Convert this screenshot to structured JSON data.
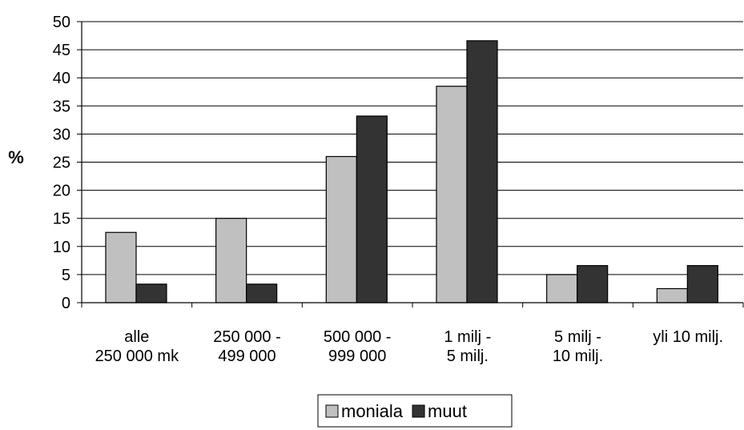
{
  "chart_data": {
    "type": "bar",
    "title": "",
    "xlabel": "",
    "ylabel": "%",
    "ylim": [
      0,
      50
    ],
    "ytick_step": 5,
    "grid": true,
    "legend_position": "bottom",
    "categories": [
      [
        "alle",
        "250 000 mk"
      ],
      [
        "250 000 -",
        "499 000"
      ],
      [
        "500 000 -",
        "999 000"
      ],
      [
        "1 milj -",
        "5 milj."
      ],
      [
        "5 milj -",
        "10 milj."
      ],
      [
        "yli 10 milj."
      ]
    ],
    "series": [
      {
        "name": "moniala",
        "color": "#c0c0c0",
        "values": [
          12.5,
          15,
          26,
          38.5,
          5,
          2.5
        ]
      },
      {
        "name": "muut",
        "color": "#333333",
        "values": [
          3.3,
          3.3,
          33.2,
          46.6,
          6.6,
          6.6
        ]
      }
    ]
  }
}
